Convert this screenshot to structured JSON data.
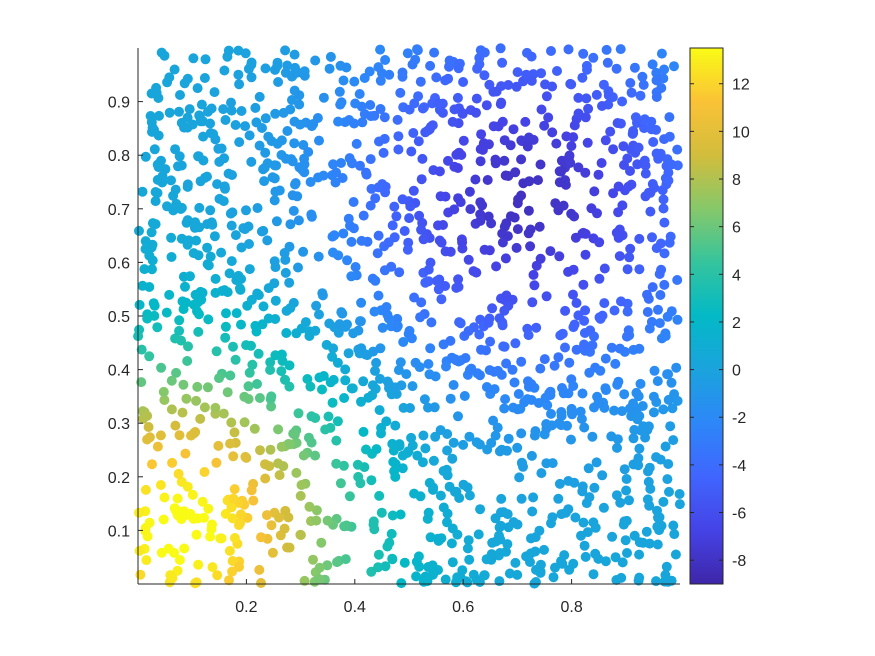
{
  "chart_data": {
    "type": "scatter",
    "title": "",
    "xlabel": "",
    "ylabel": "",
    "xlim": [
      0,
      1
    ],
    "ylim": [
      0,
      1
    ],
    "x_ticks": [
      "0.2",
      "0.4",
      "0.6",
      "0.8"
    ],
    "y_ticks": [
      "0.1",
      "0.2",
      "0.3",
      "0.4",
      "0.5",
      "0.6",
      "0.7",
      "0.8",
      "0.9"
    ],
    "points_count": 1600,
    "color_value_description": "smooth field, high (about 11) near x=0.1,y=0.1 and low (about -7) near x=0.75,y=0.7",
    "colorbar": {
      "colormap": "parula",
      "clim": [
        -9,
        13.5
      ],
      "ticks": [
        "12",
        "10",
        "8",
        "6",
        "4",
        "2",
        "0",
        "-2",
        "-4",
        "-6",
        "-8"
      ]
    },
    "grid": false,
    "legend": "none"
  },
  "colors": {
    "axis": "#262626",
    "background": "#ffffff"
  }
}
